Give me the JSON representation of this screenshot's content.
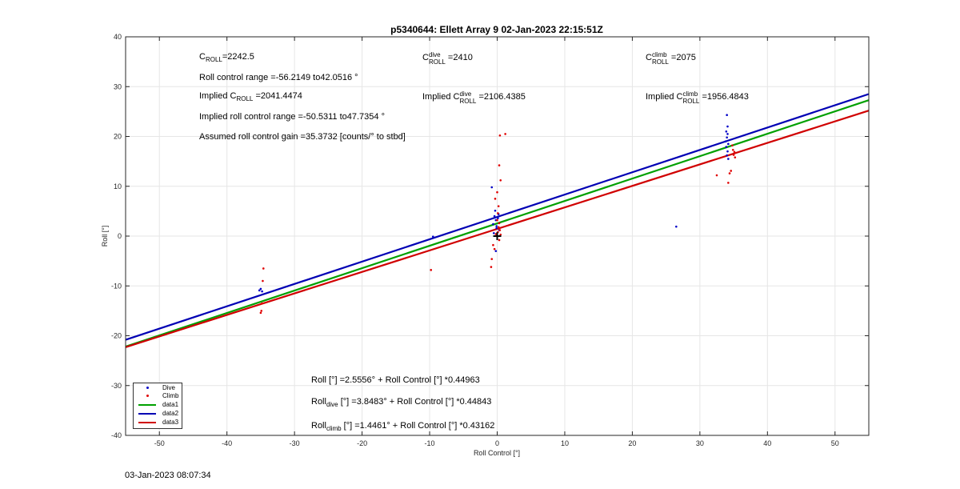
{
  "chart_data": {
    "type": "scatter",
    "title": "p5340644: Ellett Array 9 02-Jan-2023 22:15:51Z",
    "xlabel": "Roll Control [°]",
    "ylabel": "Roll [°]",
    "xlim": [
      -55,
      55
    ],
    "ylim": [
      -40,
      40
    ],
    "xticks": [
      -50,
      -40,
      -30,
      -20,
      -10,
      0,
      10,
      20,
      30,
      40,
      50
    ],
    "yticks": [
      -40,
      -30,
      -20,
      -10,
      0,
      10,
      20,
      30,
      40
    ],
    "grid": true,
    "legend_placement": "bottom-left",
    "series": [
      {
        "name": "Dive",
        "kind": "points",
        "color": "#0000c8",
        "points": [
          [
            -35,
            -10.6
          ],
          [
            -35.2,
            -10.9
          ],
          [
            -34.8,
            -11.1
          ],
          [
            -9.5,
            -0.1
          ],
          [
            -0.4,
            4.0
          ],
          [
            -0.2,
            3.2
          ],
          [
            -0.6,
            2.4
          ],
          [
            -0.1,
            1.6
          ],
          [
            0.1,
            3.6
          ],
          [
            -0.8,
            9.8
          ],
          [
            -0.3,
            5.1
          ],
          [
            -0.5,
            0.6
          ],
          [
            -0.2,
            -3.0
          ],
          [
            0.2,
            4.4
          ],
          [
            -0.1,
            2.0
          ],
          [
            0.3,
            1.2
          ],
          [
            26.5,
            1.9
          ],
          [
            34.0,
            24.3
          ],
          [
            34.1,
            22.0
          ],
          [
            33.9,
            21.0
          ],
          [
            34.0,
            19.8
          ],
          [
            34.2,
            18.5
          ],
          [
            33.9,
            17.9
          ],
          [
            34.1,
            17.0
          ],
          [
            34.0,
            16.2
          ],
          [
            34.2,
            15.5
          ],
          [
            33.8,
            19.0
          ],
          [
            34.1,
            20.5
          ]
        ]
      },
      {
        "name": "Climb",
        "kind": "points",
        "color": "#e00000",
        "points": [
          [
            -34.6,
            -6.5
          ],
          [
            -34.7,
            -9.0
          ],
          [
            -34.8,
            -13.5
          ],
          [
            -34.9,
            -15.0
          ],
          [
            -35.0,
            -15.4
          ],
          [
            -9.8,
            -6.8
          ],
          [
            0.4,
            20.2
          ],
          [
            1.2,
            20.5
          ],
          [
            0.3,
            14.2
          ],
          [
            0.5,
            11.2
          ],
          [
            0.0,
            8.8
          ],
          [
            -0.3,
            7.5
          ],
          [
            0.2,
            6.0
          ],
          [
            0.1,
            4.6
          ],
          [
            0.0,
            3.2
          ],
          [
            0.3,
            2.6
          ],
          [
            0.2,
            1.8
          ],
          [
            0.4,
            1.2
          ],
          [
            0.1,
            0.8
          ],
          [
            0.5,
            0.3
          ],
          [
            -0.2,
            0.4
          ],
          [
            0.3,
            -0.8
          ],
          [
            -0.6,
            -1.8
          ],
          [
            -0.4,
            -2.6
          ],
          [
            -0.8,
            -4.6
          ],
          [
            -0.9,
            -6.2
          ],
          [
            32.5,
            12.2
          ],
          [
            34.2,
            10.7
          ],
          [
            34.4,
            12.6
          ],
          [
            34.6,
            13.1
          ],
          [
            35.0,
            16.3
          ],
          [
            35.1,
            16.9
          ],
          [
            34.9,
            17.3
          ],
          [
            35.2,
            15.8
          ],
          [
            34.8,
            18.2
          ]
        ]
      },
      {
        "name": "data1",
        "kind": "line",
        "color": "#00a000",
        "intercept": 2.5556,
        "slope": 0.44963
      },
      {
        "name": "data2",
        "kind": "line",
        "color": "#0000b4",
        "intercept": 3.8483,
        "slope": 0.44843
      },
      {
        "name": "data3",
        "kind": "line",
        "color": "#d00000",
        "intercept": 1.4461,
        "slope": 0.43162
      }
    ],
    "origin_marker": {
      "x": 0,
      "y": 0,
      "symbol": "+"
    }
  },
  "annotations": {
    "c_roll": {
      "base": "C",
      "sub": "ROLL",
      "value": "=2242.5"
    },
    "c_roll_dive": {
      "base": "C",
      "sup": "dive",
      "sub": "ROLL",
      "value": "=2410"
    },
    "c_roll_climb": {
      "base": "C",
      "sup": "climb",
      "sub": "ROLL",
      "value": "=2075"
    },
    "roll_range": "Roll control range =-56.2149 to42.0516 °",
    "implied_prefix": "Implied ",
    "implied_c_roll": {
      "base": "C",
      "sub": "ROLL",
      "value": "=2041.4474"
    },
    "implied_c_roll_dive": {
      "base": "C",
      "sup": "dive",
      "sub": "ROLL",
      "value": "=2106.4385"
    },
    "implied_c_roll_climb": {
      "base": "C",
      "sup": "climb",
      "sub": "ROLL",
      "value": "=1956.4843"
    },
    "implied_range": "Implied roll control range =-50.5311 to47.7354 °",
    "gain": "Assumed roll control gain =35.3732 [counts/° to stbd]",
    "fit_all": "Roll [°] =2.5556° + Roll Control [°] *0.44963",
    "fit_dive": {
      "base": "Roll",
      "sub": "dive",
      "rest": " [°] =3.8483° + Roll Control [°] *0.44843"
    },
    "fit_climb": {
      "base": "Roll",
      "sub": "climb",
      "rest": " [°] =1.4461° + Roll Control [°] *0.43162"
    }
  },
  "legend": {
    "items": [
      "Dive",
      "Climb",
      "data1",
      "data2",
      "data3"
    ]
  },
  "footer": {
    "timestamp": "03-Jan-2023 08:07:34"
  }
}
